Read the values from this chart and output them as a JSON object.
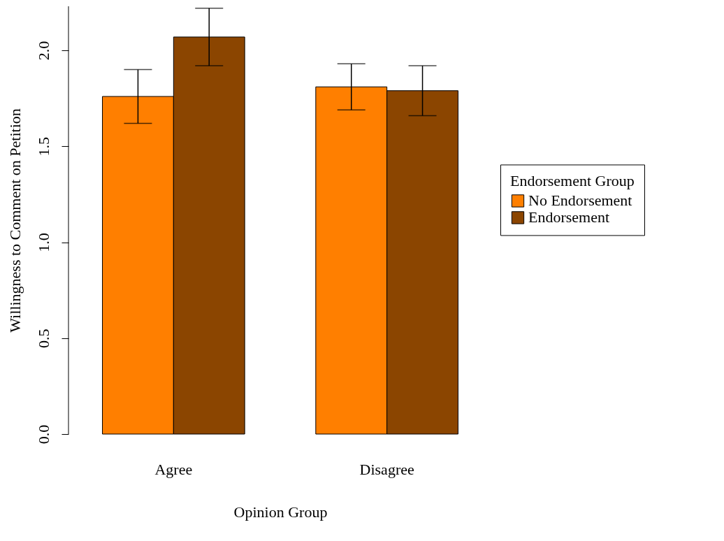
{
  "chart_data": {
    "type": "bar",
    "xlabel": "Opinion Group",
    "ylabel": "Willingness to Comment on Petition",
    "legend_title": "Endorsement Group",
    "categories": [
      "Agree",
      "Disagree"
    ],
    "series": [
      {
        "name": "No Endorsement",
        "color": "#ff7f00",
        "values": [
          1.76,
          1.81
        ],
        "errors": [
          [
            1.62,
            1.9
          ],
          [
            1.69,
            1.93
          ]
        ]
      },
      {
        "name": "Endorsement",
        "color": "#8b4500",
        "values": [
          2.07,
          1.79
        ],
        "errors": [
          [
            1.92,
            2.22
          ],
          [
            1.66,
            1.92
          ]
        ]
      }
    ],
    "ylim": [
      0,
      2.23
    ],
    "yticks": [
      {
        "value": 0,
        "label": "0.0"
      },
      0.5,
      {
        "value": 1,
        "label": "1.0"
      },
      1.5,
      {
        "value": 2,
        "label": "2.0"
      }
    ],
    "grid": false,
    "legend": "right"
  }
}
